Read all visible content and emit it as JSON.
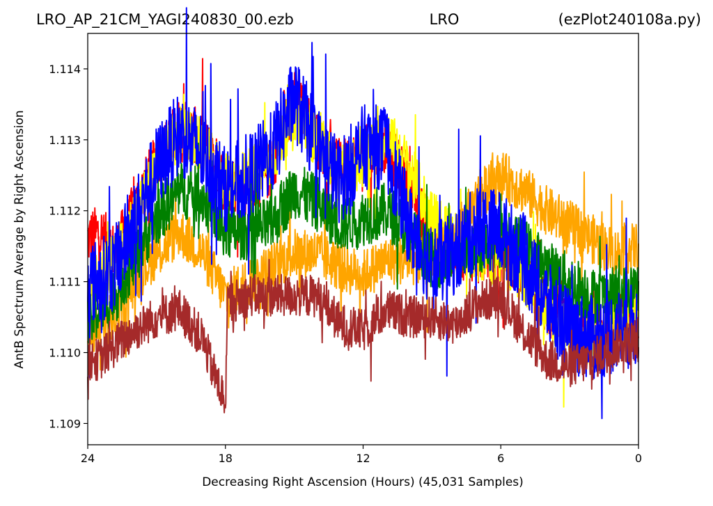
{
  "page": {
    "title_left": "LRO_AP_21CM_YAGI240830_00.ezb",
    "title_center": "LRO",
    "title_right": "(ezPlot240108a.py)"
  },
  "chart_data": {
    "type": "line",
    "xlabel": "Decreasing Right Ascension (Hours) (45,031 Samples)",
    "ylabel": "AntB Spectrum Average by Right Ascension",
    "xlim": [
      24,
      0
    ],
    "ylim": [
      1.1087,
      1.1145
    ],
    "x_ticks": [
      24,
      18,
      12,
      6,
      0
    ],
    "x_tick_labels": [
      "24",
      "18",
      "12",
      "6",
      "0"
    ],
    "y_ticks": [
      1.109,
      1.11,
      1.111,
      1.112,
      1.113,
      1.114
    ],
    "y_tick_labels": [
      "1.109",
      "1.110",
      "1.111",
      "1.112",
      "1.113",
      "1.114"
    ],
    "grid": false,
    "legend": "none",
    "series": [
      {
        "color": "#ff0000",
        "band": 0.0008,
        "x": [
          24,
          23.5,
          22.8,
          22.0,
          21.0,
          20.0,
          19.0,
          18.0,
          17.0,
          16.0,
          15.0,
          14.0,
          13.0,
          12.0,
          11.0,
          10.0,
          9.0,
          8.0,
          7.0,
          6.0,
          5.0,
          4.0,
          3.0,
          2.0,
          1.0,
          0.0
        ],
        "y": [
          1.1116,
          1.1117,
          1.1114,
          1.112,
          1.1127,
          1.1132,
          1.113,
          1.1124,
          1.1123,
          1.1126,
          1.1136,
          1.113,
          1.1126,
          1.1128,
          1.1129,
          1.1124,
          1.1116,
          1.1114,
          1.1114,
          1.1114,
          1.1112,
          1.1106,
          1.1103,
          1.1102,
          1.1104,
          1.1106
        ]
      },
      {
        "color": "#ffff00",
        "band": 0.0008,
        "x": [
          24,
          23.5,
          22.8,
          22.0,
          21.0,
          20.0,
          19.0,
          18.0,
          17.0,
          16.0,
          15.0,
          14.0,
          13.0,
          12.0,
          11.0,
          10.0,
          9.0,
          8.0,
          7.0,
          6.0,
          5.0,
          4.0,
          3.0,
          2.0,
          1.0,
          0.0
        ],
        "y": [
          1.1108,
          1.1111,
          1.1113,
          1.1118,
          1.1126,
          1.1131,
          1.1129,
          1.1124,
          1.1125,
          1.1127,
          1.1134,
          1.113,
          1.1125,
          1.1127,
          1.1131,
          1.1126,
          1.1119,
          1.1116,
          1.1114,
          1.1113,
          1.1111,
          1.1106,
          1.1103,
          1.1101,
          1.1104,
          1.1106
        ]
      },
      {
        "color": "#ffa500",
        "band": 0.0007,
        "x": [
          24,
          23.5,
          22.8,
          22.0,
          21.0,
          20.0,
          19.0,
          18.0,
          17.0,
          16.0,
          15.0,
          14.0,
          13.0,
          12.0,
          11.0,
          10.0,
          9.0,
          8.0,
          7.0,
          6.0,
          5.0,
          4.0,
          3.0,
          2.0,
          1.0,
          0.0
        ],
        "y": [
          1.1102,
          1.1104,
          1.1105,
          1.111,
          1.1114,
          1.1117,
          1.1114,
          1.1108,
          1.111,
          1.1112,
          1.1114,
          1.1114,
          1.1112,
          1.1111,
          1.1113,
          1.1113,
          1.1113,
          1.1116,
          1.1122,
          1.1125,
          1.1123,
          1.112,
          1.1118,
          1.1116,
          1.1114,
          1.1115
        ]
      },
      {
        "color": "#008000",
        "band": 0.0008,
        "x": [
          24,
          23.5,
          22.8,
          22.0,
          21.0,
          20.0,
          19.0,
          18.0,
          17.0,
          16.0,
          15.0,
          14.0,
          13.0,
          12.0,
          11.0,
          10.0,
          9.0,
          8.0,
          7.0,
          6.0,
          5.0,
          4.0,
          3.0,
          2.0,
          1.0,
          0.0
        ],
        "y": [
          1.1104,
          1.1106,
          1.1108,
          1.1113,
          1.1119,
          1.1123,
          1.1122,
          1.1117,
          1.1117,
          1.1118,
          1.1123,
          1.1121,
          1.1118,
          1.1119,
          1.112,
          1.1117,
          1.1113,
          1.1113,
          1.1115,
          1.1116,
          1.1115,
          1.1112,
          1.111,
          1.1108,
          1.1108,
          1.1109
        ]
      },
      {
        "color": "#0000ff",
        "band": 0.0012,
        "x": [
          24,
          23.5,
          22.8,
          22.0,
          21.0,
          20.0,
          19.0,
          18.0,
          17.0,
          16.0,
          15.0,
          14.0,
          13.0,
          12.0,
          11.0,
          10.0,
          9.0,
          8.0,
          7.0,
          6.0,
          5.0,
          4.0,
          3.0,
          2.0,
          1.0,
          0.0
        ],
        "y": [
          1.111,
          1.111,
          1.1112,
          1.1118,
          1.1126,
          1.1131,
          1.1128,
          1.1123,
          1.1125,
          1.1128,
          1.1136,
          1.1129,
          1.1124,
          1.1129,
          1.1129,
          1.1118,
          1.1112,
          1.1114,
          1.1118,
          1.1117,
          1.1113,
          1.1107,
          1.1103,
          1.1102,
          1.1103,
          1.1104
        ]
      },
      {
        "color": "#a52a2a",
        "band": 0.0006,
        "x": [
          24,
          23.5,
          22.8,
          22.0,
          21.0,
          20.0,
          19.0,
          18.5,
          18.0,
          17.9,
          17.0,
          16.0,
          15.0,
          14.0,
          13.0,
          12.0,
          11.0,
          10.0,
          9.0,
          8.0,
          7.0,
          6.0,
          5.0,
          4.0,
          3.0,
          2.0,
          1.0,
          0.0
        ],
        "y": [
          1.1099,
          1.1099,
          1.1101,
          1.1103,
          1.1105,
          1.1106,
          1.1102,
          1.1097,
          1.1093,
          1.1107,
          1.1108,
          1.1108,
          1.1108,
          1.1108,
          1.1104,
          1.1103,
          1.1106,
          1.1105,
          1.1105,
          1.1104,
          1.1107,
          1.1108,
          1.1103,
          1.1099,
          1.1098,
          1.1099,
          1.1101,
          1.1102
        ]
      }
    ]
  }
}
